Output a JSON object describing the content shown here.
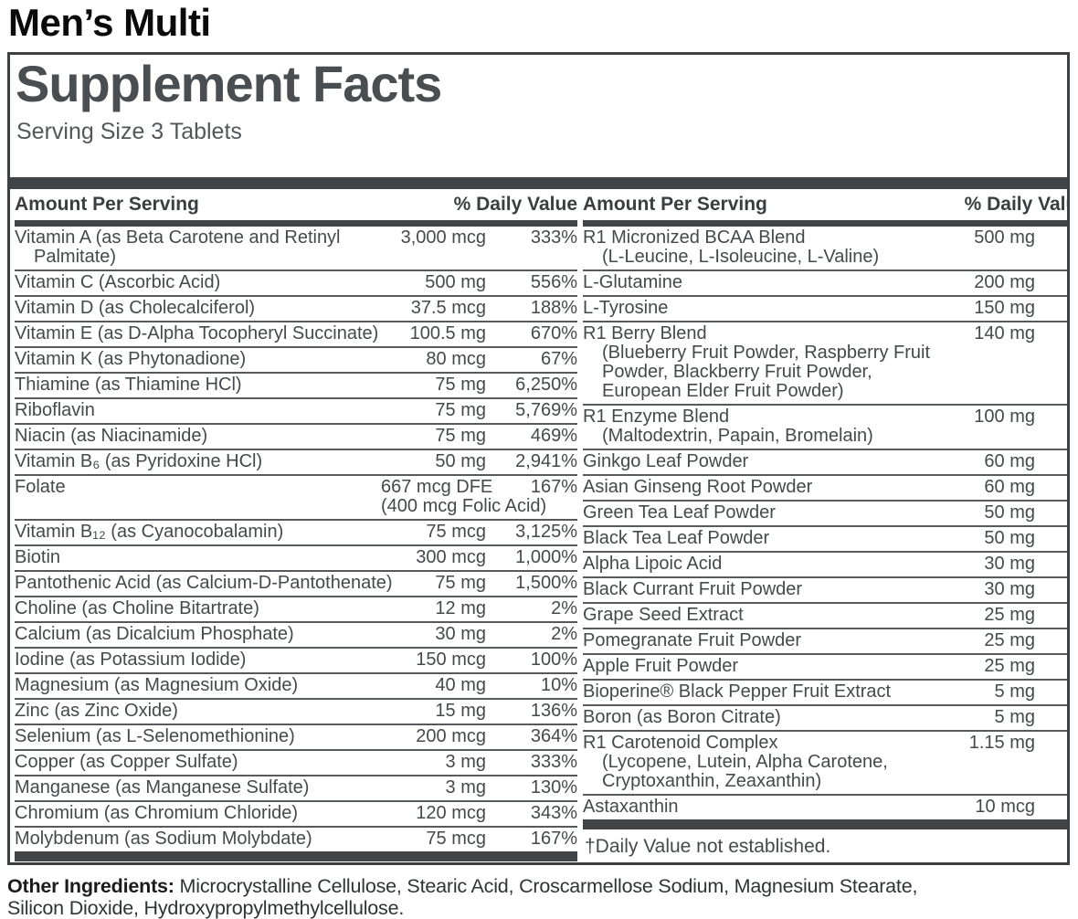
{
  "product_title": "Men’s Multi",
  "panel": {
    "title": "Supplement Facts",
    "serving_size": "Serving Size 3 Tablets",
    "columns": [
      {
        "header": {
          "amount_label": "Amount Per Serving",
          "dv_label": "% Daily Value"
        },
        "rows": [
          {
            "lines": [
              "Vitamin A (as Beta Carotene and Retinyl",
              "Palmitate)"
            ],
            "amount": "3,000 mcg",
            "dv": "333%"
          },
          {
            "lines": [
              "Vitamin C (Ascorbic Acid)"
            ],
            "amount": "500 mg",
            "dv": "556%"
          },
          {
            "lines": [
              "Vitamin D (as Cholecalciferol)"
            ],
            "amount": "37.5 mcg",
            "dv": "188%"
          },
          {
            "lines": [
              "Vitamin E (as D-Alpha Tocopheryl Succinate)"
            ],
            "amount": "100.5 mg",
            "dv": "670%"
          },
          {
            "lines": [
              "Vitamin K (as Phytonadione)"
            ],
            "amount": "80 mcg",
            "dv": "67%"
          },
          {
            "lines": [
              "Thiamine (as Thiamine HCl)"
            ],
            "amount": "75 mg",
            "dv": "6,250%"
          },
          {
            "lines": [
              "Riboflavin"
            ],
            "amount": "75 mg",
            "dv": "5,769%"
          },
          {
            "lines": [
              "Niacin (as Niacinamide)"
            ],
            "amount": "75 mg",
            "dv": "469%"
          },
          {
            "lines": [
              "Vitamin B₆ (as Pyridoxine HCl)"
            ],
            "amount": "50 mg",
            "dv": "2,941%"
          },
          {
            "lines": [
              "Folate"
            ],
            "amount": "667 mcg DFE",
            "amount2": "(400 mcg Folic Acid)",
            "dv": "167%"
          },
          {
            "lines": [
              "Vitamin B₁₂ (as Cyanocobalamin)"
            ],
            "amount": "75 mcg",
            "dv": "3,125%"
          },
          {
            "lines": [
              "Biotin"
            ],
            "amount": "300 mcg",
            "dv": "1,000%"
          },
          {
            "lines": [
              "Pantothenic Acid (as Calcium-D-Pantothenate)"
            ],
            "amount": "75 mg",
            "dv": "1,500%"
          },
          {
            "lines": [
              "Choline (as Choline Bitartrate)"
            ],
            "amount": "12 mg",
            "dv": "2%"
          },
          {
            "lines": [
              "Calcium (as Dicalcium Phosphate)"
            ],
            "amount": "30 mg",
            "dv": "2%"
          },
          {
            "lines": [
              "Iodine (as Potassium Iodide)"
            ],
            "amount": "150 mcg",
            "dv": "100%"
          },
          {
            "lines": [
              "Magnesium (as Magnesium Oxide)"
            ],
            "amount": "40 mg",
            "dv": "10%"
          },
          {
            "lines": [
              "Zinc (as Zinc Oxide)"
            ],
            "amount": "15 mg",
            "dv": "136%"
          },
          {
            "lines": [
              "Selenium (as L-Selenomethionine)"
            ],
            "amount": "200 mcg",
            "dv": "364%"
          },
          {
            "lines": [
              "Copper (as Copper Sulfate)"
            ],
            "amount": "3 mg",
            "dv": "333%"
          },
          {
            "lines": [
              "Manganese (as Manganese Sulfate)"
            ],
            "amount": "3 mg",
            "dv": "130%"
          },
          {
            "lines": [
              "Chromium (as Chromium Chloride)"
            ],
            "amount": "120 mcg",
            "dv": "343%"
          },
          {
            "lines": [
              "Molybdenum (as Sodium Molybdate)"
            ],
            "amount": "75 mcg",
            "dv": "167%"
          }
        ]
      },
      {
        "header": {
          "amount_label": "Amount Per Serving",
          "dv_label": "% Daily Value"
        },
        "rows": [
          {
            "lines": [
              "R1 Micronized BCAA Blend",
              "(L-Leucine, L-Isoleucine, L-Valine)"
            ],
            "amount": "500 mg",
            "dv": "†"
          },
          {
            "lines": [
              "L-Glutamine"
            ],
            "amount": "200 mg",
            "dv": "†"
          },
          {
            "lines": [
              "L-Tyrosine"
            ],
            "amount": "150 mg",
            "dv": "†"
          },
          {
            "lines": [
              "R1 Berry Blend",
              "(Blueberry Fruit Powder, Raspberry Fruit",
              "Powder, Blackberry Fruit Powder,",
              "European Elder Fruit Powder)"
            ],
            "amount": "140 mg",
            "dv": "†"
          },
          {
            "lines": [
              "R1 Enzyme Blend",
              "(Maltodextrin, Papain, Bromelain)"
            ],
            "amount": "100 mg",
            "dv": "†"
          },
          {
            "lines": [
              "Ginkgo Leaf Powder"
            ],
            "amount": "60 mg",
            "dv": "†"
          },
          {
            "lines": [
              "Asian Ginseng Root Powder"
            ],
            "amount": "60 mg",
            "dv": "†"
          },
          {
            "lines": [
              "Green Tea Leaf Powder"
            ],
            "amount": "50 mg",
            "dv": "†"
          },
          {
            "lines": [
              "Black Tea Leaf Powder"
            ],
            "amount": "50 mg",
            "dv": "†"
          },
          {
            "lines": [
              "Alpha Lipoic Acid"
            ],
            "amount": "30 mg",
            "dv": "†"
          },
          {
            "lines": [
              "Black Currant Fruit Powder"
            ],
            "amount": "30 mg",
            "dv": "†"
          },
          {
            "lines": [
              "Grape Seed Extract"
            ],
            "amount": "25 mg",
            "dv": "†"
          },
          {
            "lines": [
              "Pomegranate Fruit Powder"
            ],
            "amount": "25 mg",
            "dv": "†"
          },
          {
            "lines": [
              "Apple Fruit Powder"
            ],
            "amount": "25 mg",
            "dv": "†"
          },
          {
            "lines": [
              "Bioperine® Black Pepper Fruit Extract"
            ],
            "amount": "5 mg",
            "dv": "†"
          },
          {
            "lines": [
              "Boron (as Boron Citrate)"
            ],
            "amount": "5 mg",
            "dv": "†"
          },
          {
            "lines": [
              "R1 Carotenoid Complex",
              "(Lycopene, Lutein, Alpha Carotene,",
              "Cryptoxanthin, Zeaxanthin)"
            ],
            "amount": "1.15 mg",
            "dv": "†"
          },
          {
            "lines": [
              "Astaxanthin"
            ],
            "amount": "10 mcg",
            "dv": "†"
          }
        ],
        "footnote": "†Daily Value not established."
      }
    ]
  },
  "footer": {
    "label": "Other Ingredients:",
    "text": " Microcrystalline Cellulose, Stearic Acid, Croscarmellose Sodium, Magnesium Stearate, Silicon Dioxide, Hydroxypropylmethylcellulose."
  }
}
